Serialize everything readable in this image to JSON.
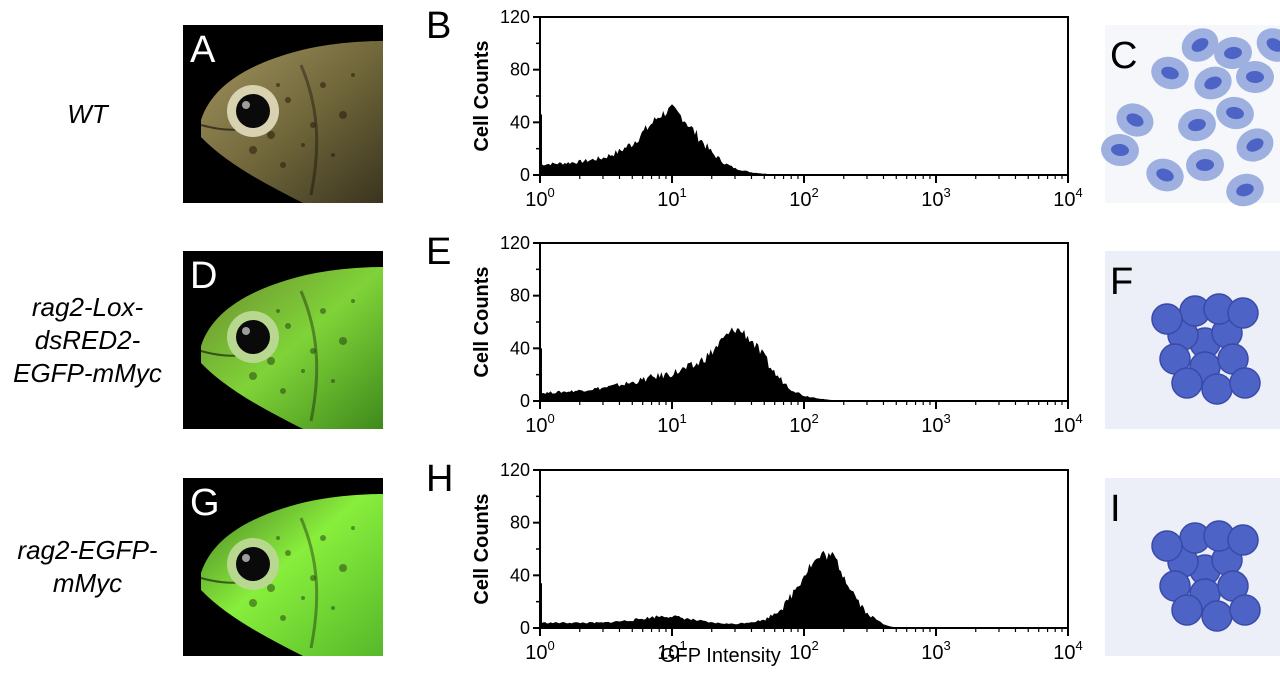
{
  "figure": {
    "rows": [
      {
        "genotype_lines": [
          "WT"
        ],
        "photo_letter": "A",
        "photo_glow": "none",
        "hist_letter": "B",
        "cells_letter": "C",
        "cells_type": "dispersed"
      },
      {
        "genotype_lines": [
          "rag2-Lox-",
          "dsRED2-",
          "EGFP-mMyc"
        ],
        "photo_letter": "D",
        "photo_glow": "moderate",
        "hist_letter": "E",
        "cells_letter": "F",
        "cells_type": "cluster"
      },
      {
        "genotype_lines": [
          "rag2-EGFP-",
          "mMyc"
        ],
        "photo_letter": "G",
        "photo_glow": "strong",
        "hist_letter": "H",
        "cells_letter": "I",
        "cells_type": "cluster"
      }
    ],
    "colors": {
      "gfp": "#4cd12a",
      "stain": "#4e63c6",
      "background": "#ffffff"
    }
  },
  "chart_data": [
    {
      "type": "area",
      "panel": "B",
      "ylabel": "Cell Counts",
      "xlabel": "",
      "x_scale": "log",
      "xlim": [
        1,
        10000
      ],
      "ylim": [
        0,
        120
      ],
      "x_ticks": [
        "10^0",
        "10^1",
        "10^2",
        "10^3",
        "10^4"
      ],
      "y_ticks": [
        0,
        40,
        80,
        120
      ],
      "x": [
        1,
        1.5,
        2,
        3,
        4,
        5,
        6,
        7,
        8,
        9,
        10,
        12,
        15,
        20,
        25,
        30,
        40,
        50,
        70,
        100,
        10000
      ],
      "values": [
        8,
        9,
        10,
        13,
        18,
        24,
        32,
        39,
        45,
        48,
        50,
        44,
        32,
        17,
        9,
        5,
        2,
        1,
        0,
        0,
        0
      ]
    },
    {
      "type": "area",
      "panel": "E",
      "ylabel": "Cell Counts",
      "xlabel": "",
      "x_scale": "log",
      "xlim": [
        1,
        10000
      ],
      "ylim": [
        0,
        120
      ],
      "x_ticks": [
        "10^0",
        "10^1",
        "10^2",
        "10^3",
        "10^4"
      ],
      "y_ticks": [
        0,
        40,
        80,
        120
      ],
      "x": [
        1,
        1.5,
        2,
        3,
        5,
        7,
        10,
        15,
        20,
        25,
        30,
        35,
        40,
        50,
        60,
        80,
        100,
        150,
        200,
        10000
      ],
      "values": [
        6,
        7,
        8,
        10,
        14,
        18,
        21,
        27,
        37,
        48,
        55,
        52,
        46,
        33,
        21,
        9,
        4,
        1,
        0,
        0
      ]
    },
    {
      "type": "area",
      "panel": "H",
      "ylabel": "Cell Counts",
      "xlabel": "GFP Intensity",
      "x_scale": "log",
      "xlim": [
        1,
        10000
      ],
      "ylim": [
        0,
        120
      ],
      "x_ticks": [
        "10^0",
        "10^1",
        "10^2",
        "10^3",
        "10^4"
      ],
      "y_ticks": [
        0,
        40,
        80,
        120
      ],
      "x": [
        1,
        1.5,
        2,
        3,
        5,
        8,
        10,
        15,
        20,
        30,
        50,
        70,
        90,
        110,
        140,
        170,
        200,
        250,
        300,
        400,
        500,
        10000
      ],
      "values": [
        4,
        4,
        4,
        4,
        6,
        9,
        9,
        6,
        4,
        3,
        6,
        16,
        33,
        47,
        56,
        54,
        40,
        23,
        11,
        3,
        0,
        0
      ]
    }
  ]
}
